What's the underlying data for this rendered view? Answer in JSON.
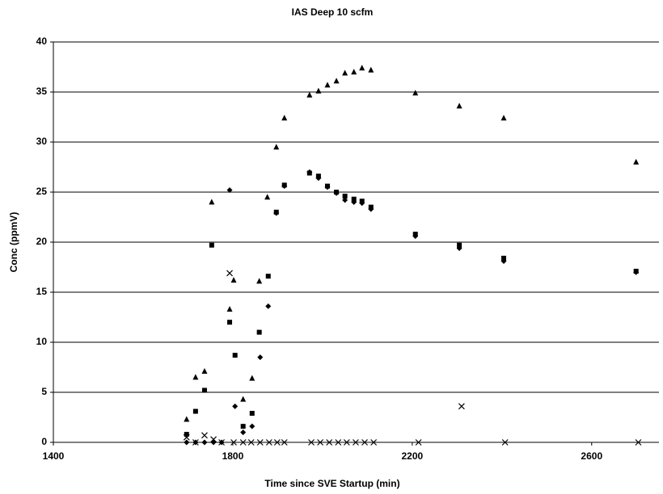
{
  "chart_data": {
    "type": "scatter",
    "title": "IAS Deep 10 scfm",
    "x_label": "Time since SVE Startup (min)",
    "y_label": "Conc (ppmV)",
    "xlim": [
      1400,
      2750
    ],
    "xticks": [
      1400,
      1800,
      2200,
      2600
    ],
    "ylim": [
      0,
      40
    ],
    "yticks": [
      0,
      5,
      10,
      15,
      20,
      25,
      30,
      35,
      40
    ],
    "grid": true,
    "series": [
      {
        "marker": "triangle",
        "color": "#000000",
        "x": [
          1697,
          1717,
          1737,
          1753,
          1793,
          1802,
          1823,
          1843,
          1859,
          1877,
          1897,
          1915,
          1971,
          1991,
          2011,
          2031,
          2050,
          2070,
          2088,
          2108,
          2207,
          2305,
          2404,
          2699
        ],
        "values": [
          2.3,
          6.5,
          7.1,
          24.0,
          13.3,
          16.2,
          4.3,
          6.4,
          16.1,
          24.5,
          29.5,
          32.4,
          34.7,
          35.1,
          35.7,
          36.1,
          36.9,
          37.0,
          37.4,
          37.2,
          34.9,
          33.6,
          32.4,
          28.0
        ]
      },
      {
        "marker": "square",
        "color": "#000000",
        "x": [
          1697,
          1717,
          1737,
          1753,
          1793,
          1805,
          1823,
          1843,
          1859,
          1879,
          1897,
          1915,
          1971,
          1991,
          2011,
          2031,
          2050,
          2070,
          2088,
          2108,
          2207,
          2305,
          2404,
          2699
        ],
        "values": [
          0.8,
          3.1,
          5.2,
          19.7,
          12.0,
          8.7,
          1.6,
          2.9,
          11.0,
          16.6,
          23.0,
          25.7,
          26.9,
          26.6,
          25.6,
          25.0,
          24.6,
          24.3,
          24.1,
          23.5,
          20.8,
          19.7,
          18.4,
          17.1
        ]
      },
      {
        "marker": "diamond",
        "color": "#000000",
        "x": [
          1697,
          1717,
          1737,
          1757,
          1775,
          1793,
          1805,
          1823,
          1843,
          1861,
          1879,
          1897,
          1915,
          1971,
          1991,
          2011,
          2031,
          2050,
          2070,
          2088,
          2108,
          2207,
          2305,
          2404,
          2699
        ],
        "values": [
          0,
          0,
          0,
          0,
          0,
          25.2,
          3.6,
          1.0,
          1.6,
          8.5,
          13.6,
          22.9,
          25.6,
          27.0,
          26.4,
          25.5,
          24.9,
          24.2,
          24.0,
          23.9,
          23.3,
          20.6,
          19.4,
          18.1,
          17.0
        ]
      },
      {
        "marker": "x",
        "color": "#000000",
        "x": [
          1697,
          1717,
          1737,
          1757,
          1775,
          1793,
          1802,
          1823,
          1841,
          1861,
          1881,
          1899,
          1915,
          1975,
          1995,
          2015,
          2035,
          2054,
          2074,
          2094,
          2114,
          2214,
          2310,
          2407,
          2704
        ],
        "values": [
          0.5,
          0,
          0.7,
          0.3,
          0,
          16.9,
          0,
          0,
          0,
          0,
          0,
          0,
          0,
          0,
          0,
          0,
          0,
          0,
          0,
          0,
          0,
          0,
          3.6,
          0,
          0
        ]
      }
    ]
  }
}
